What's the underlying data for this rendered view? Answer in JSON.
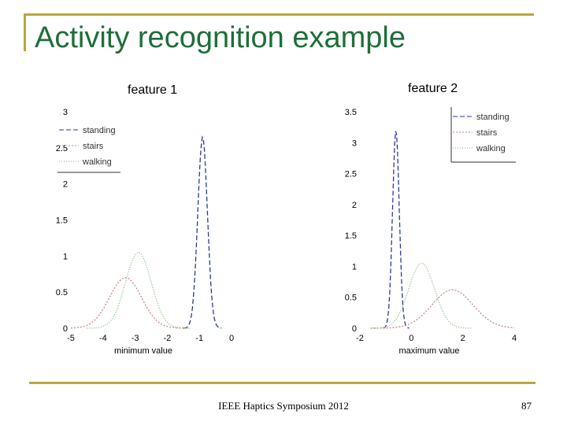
{
  "slide": {
    "title": "Activity recognition example",
    "footer": "IEEE Haptics Symposium 2012",
    "page_number": "87",
    "accent_color": "#b8a83a",
    "title_color": "#1f6e3a"
  },
  "chart_data": [
    {
      "type": "line",
      "title": "feature 1",
      "xlabel": "minimum value",
      "ylabel": "",
      "xlim": [
        -5,
        0
      ],
      "ylim": [
        0,
        3
      ],
      "xticks": [
        -5,
        -4,
        -3,
        -2,
        -1,
        0
      ],
      "yticks": [
        0,
        0.5,
        1,
        1.5,
        2,
        2.5,
        3
      ],
      "legend_position": "top-left",
      "series": [
        {
          "name": "standing",
          "color": "#2a3a9c",
          "dash": "6,3",
          "curve": {
            "mean": -0.9,
            "sd": 0.15,
            "peak": 2.65
          }
        },
        {
          "name": "stairs",
          "color": "#c08a8a",
          "dash": "2,2",
          "curve": {
            "mean": -3.3,
            "sd": 0.5,
            "peak": 0.7
          }
        },
        {
          "name": "walking",
          "color": "#7ab87a",
          "dash": "1,2",
          "curve": {
            "mean": -2.9,
            "sd": 0.4,
            "peak": 1.05
          }
        }
      ]
    },
    {
      "type": "line",
      "title": "feature 2",
      "xlabel": "maximum value",
      "ylabel": "",
      "xlim": [
        -2,
        4
      ],
      "ylim": [
        0,
        3.5
      ],
      "xticks": [
        -2,
        0,
        2,
        4
      ],
      "yticks": [
        0,
        0.5,
        1,
        1.5,
        2,
        2.5,
        3,
        3.5
      ],
      "legend_position": "top-right",
      "series": [
        {
          "name": "standing",
          "color": "#2a3a9c",
          "dash": "6,3",
          "curve": {
            "mean": -0.6,
            "sd": 0.13,
            "peak": 3.2
          }
        },
        {
          "name": "stairs",
          "color": "#c08a8a",
          "dash": "2,2",
          "curve": {
            "mean": 1.6,
            "sd": 0.8,
            "peak": 0.62
          }
        },
        {
          "name": "walking",
          "color": "#7ab87a",
          "dash": "1,2",
          "curve": {
            "mean": 0.4,
            "sd": 0.5,
            "peak": 1.05
          }
        }
      ]
    }
  ]
}
